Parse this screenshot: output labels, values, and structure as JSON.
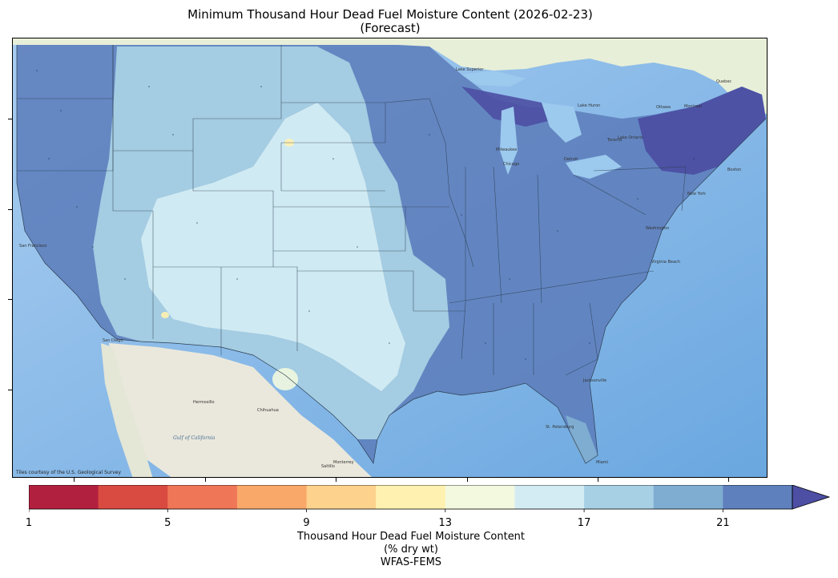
{
  "title_line1": "Minimum Thousand Hour Dead Fuel Moisture Content (2026-02-23)",
  "title_line2": "(Forecast)",
  "attribution": "Tiles courtesy of the U.S. Geological Survey",
  "colorbar": {
    "title_line1": "Thousand Hour Dead Fuel Moisture Content",
    "title_line2": "(% dry wt)",
    "title_line3": "WFAS-FEMS",
    "tick_labels": [
      "1",
      "5",
      "9",
      "13",
      "17",
      "21"
    ],
    "tick_values": [
      1,
      5,
      9,
      13,
      17,
      21
    ],
    "range": [
      1,
      23
    ],
    "extend": "max",
    "colors": [
      "#b2203f",
      "#d94a41",
      "#ef7657",
      "#f9a86a",
      "#fdd28d",
      "#fff2b0",
      "#f2f9df",
      "#d3ebf3",
      "#a8d0e4",
      "#7fadd1",
      "#5e80bd",
      "#4c4fa3"
    ]
  },
  "map_labels": {
    "cities": [
      "San Francisco",
      "San Diego",
      "Hermosillo",
      "Chihuahua",
      "Saltillo",
      "Monterrey",
      "Milwaukee",
      "Chicago",
      "Detroit",
      "Toronto",
      "Ottawa",
      "Montreal",
      "Quebec",
      "Boston",
      "New York",
      "Washington",
      "Virginia Beach",
      "Jacksonville",
      "St. Petersburg",
      "Miami",
      "Lake Superior",
      "Lake Huron",
      "Lake Ontario"
    ],
    "ocean": [
      "Gulf of California"
    ]
  }
}
